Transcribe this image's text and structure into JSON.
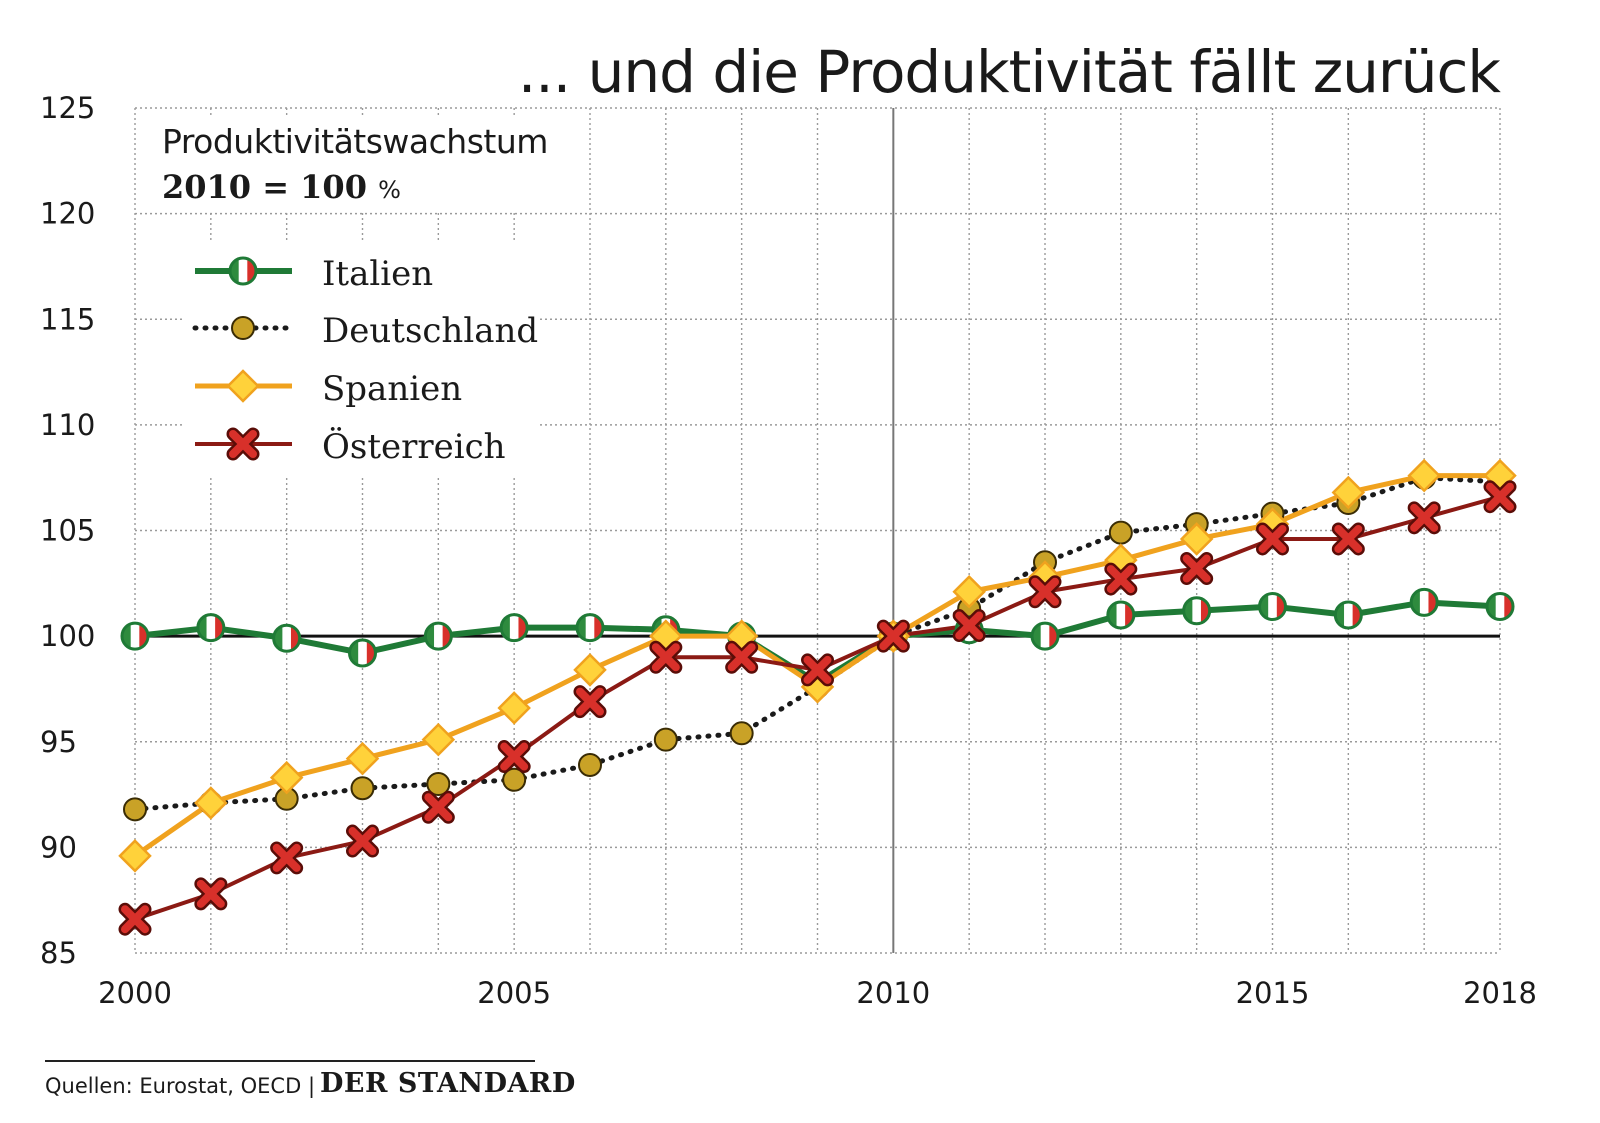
{
  "title": "... und die Produktivität fällt zurück",
  "subtitle": "Produktivitätswachstum",
  "base_label": "2010 = 100",
  "base_unit": "%",
  "footer": {
    "source": "Quellen: Eurostat, OECD |",
    "brand": "DER STANDARD"
  },
  "colors": {
    "italien": "#1f7a36",
    "deutschland": "#1a1a1a",
    "deutschland_marker": "#c9a227",
    "spanien": "#f0a21e",
    "spanien_marker": "#ffd23a",
    "oesterreich": "#8b1a14",
    "oesterreich_marker": "#d8302a",
    "grid": "#9a9a9a",
    "baseline": "#111111"
  },
  "chart_data": {
    "type": "line",
    "title": "... und die Produktivität fällt zurück",
    "subtitle": "Produktivitätswachstum 2010 = 100 %",
    "x": [
      2000,
      2001,
      2002,
      2003,
      2004,
      2005,
      2006,
      2007,
      2008,
      2009,
      2010,
      2011,
      2012,
      2013,
      2014,
      2015,
      2016,
      2017,
      2018
    ],
    "xticks": [
      "2000",
      "2005",
      "2010",
      "2015",
      "2018"
    ],
    "yticks": [
      "85",
      "90",
      "95",
      "100",
      "105",
      "110",
      "115",
      "120",
      "125"
    ],
    "ylim": [
      85,
      125
    ],
    "xlim": [
      2000,
      2018
    ],
    "grid": true,
    "legend_position": "top-left",
    "baseline": 100,
    "series": [
      {
        "name": "Italien",
        "marker": "flag-circle",
        "values": [
          100.0,
          100.4,
          99.9,
          99.2,
          100.0,
          100.4,
          100.4,
          100.3,
          100.0,
          97.8,
          100.0,
          100.3,
          100.0,
          101.0,
          101.2,
          101.4,
          101.0,
          101.6,
          101.4
        ]
      },
      {
        "name": "Deutschland",
        "marker": "circle",
        "values": [
          91.8,
          92.1,
          92.3,
          92.8,
          93.0,
          93.2,
          93.9,
          95.1,
          95.4,
          97.6,
          100.0,
          101.3,
          103.5,
          104.9,
          105.3,
          105.8,
          106.3,
          107.5,
          107.3
        ]
      },
      {
        "name": "Spanien",
        "marker": "diamond",
        "values": [
          89.6,
          92.1,
          93.3,
          94.2,
          95.1,
          96.6,
          98.4,
          100.0,
          100.0,
          97.6,
          100.0,
          102.1,
          102.8,
          103.6,
          104.6,
          105.3,
          106.8,
          107.6,
          107.6
        ]
      },
      {
        "name": "Österreich",
        "marker": "x",
        "values": [
          86.6,
          87.8,
          89.5,
          90.3,
          91.9,
          94.3,
          96.9,
          99.0,
          99.0,
          98.4,
          100.0,
          100.5,
          102.1,
          102.7,
          103.2,
          104.6,
          104.6,
          105.6,
          106.6
        ]
      }
    ]
  }
}
